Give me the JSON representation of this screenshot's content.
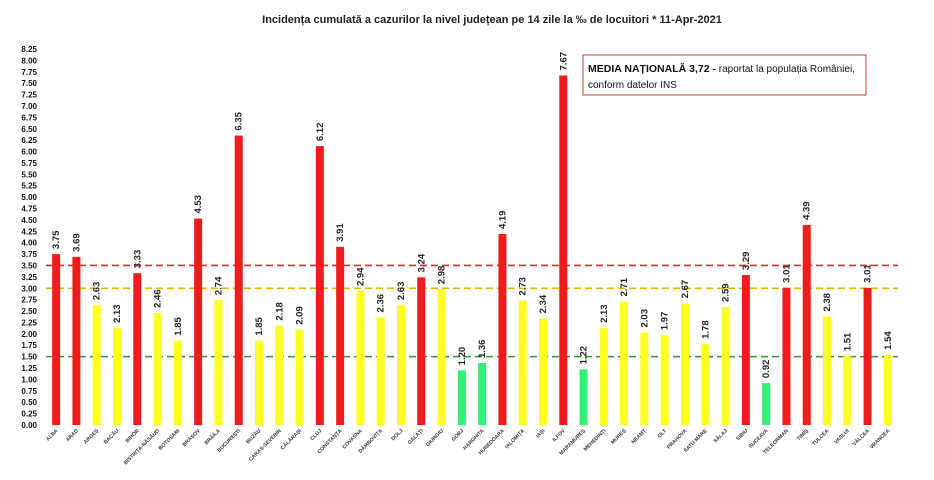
{
  "chart_data": {
    "type": "bar",
    "title": "Incidența cumulată a cazurilor la nivel județean pe 14 zile la ‰ de locuitori *   11-Apr-2021",
    "xlabel": "",
    "ylabel": "",
    "ylim": [
      0,
      8.25
    ],
    "ytick_step": 0.25,
    "grid": false,
    "categories": [
      "ALBA",
      "ARAD",
      "ARGEȘ",
      "BACĂU",
      "BIHOR",
      "BISTRIȚA-NĂSĂUD",
      "BOTOȘANI",
      "BRAȘOV",
      "BRĂILA",
      "BUCUREȘTI",
      "BUZĂU",
      "CARAȘ-SEVERIN",
      "CĂLĂRAȘI",
      "CLUJ",
      "CONSTANȚA",
      "COVASNA",
      "DÂMBOVIȚA",
      "DOLJ",
      "GALAȚI",
      "GIURGIU",
      "GORJ",
      "HARGHITA",
      "HUNEDOARA",
      "IALOMIȚA",
      "IAȘI",
      "ILFOV",
      "MARAMUREȘ",
      "MEHEDINȚI",
      "MUREȘ",
      "NEAMȚ",
      "OLT",
      "PRAHOVA",
      "SATU MARE",
      "SĂLAJ",
      "SIBIU",
      "SUCEAVA",
      "TELEORMAN",
      "TIMIȘ",
      "TULCEA",
      "VASLUI",
      "VÂLCEA",
      "VRANCEA"
    ],
    "values": [
      3.75,
      3.69,
      2.63,
      2.13,
      3.33,
      2.46,
      1.85,
      4.53,
      2.74,
      6.35,
      1.85,
      2.18,
      2.09,
      6.12,
      3.91,
      2.94,
      2.36,
      2.63,
      3.24,
      2.98,
      1.2,
      1.36,
      4.19,
      2.73,
      2.34,
      7.67,
      1.22,
      2.13,
      2.71,
      2.03,
      1.97,
      2.67,
      1.78,
      2.59,
      3.29,
      0.92,
      3.01,
      4.39,
      2.38,
      1.51,
      3.01,
      1.54
    ],
    "value_labels": [
      "3.75",
      "3.69",
      "2.63",
      "2.13",
      "3.33",
      "2.46",
      "1.85",
      "4.53",
      "2.74",
      "6.35",
      "1.85",
      "2.18",
      "2.09",
      "6.12",
      "3.91",
      "2.94",
      "2.36",
      "2.63",
      "3.24",
      "2.98",
      "1.20",
      "1.36",
      "4.19",
      "2.73",
      "2.34",
      "7.67",
      "1.22",
      "2.13",
      "2.71",
      "2.03",
      "1.97",
      "2.67",
      "1.78",
      "2.59",
      "3.29",
      "0.92",
      "3.01",
      "4.39",
      "2.38",
      "1.51",
      "3.01",
      "1.54"
    ],
    "thresholds": [
      {
        "value": 3.5,
        "color": "#e52b2b"
      },
      {
        "value": 3.0,
        "color": "#e8b800"
      },
      {
        "value": 1.5,
        "color": "#2e9a2e"
      }
    ],
    "colors": {
      "red": "#ee1c1c",
      "yellow": "#ffff22",
      "green": "#33ee77"
    },
    "annotation": {
      "bold": "MEDIA NAȚIONALĂ  3,72 -",
      "line1": " raportat la populația României,",
      "line2": "conform datelor INS"
    }
  }
}
